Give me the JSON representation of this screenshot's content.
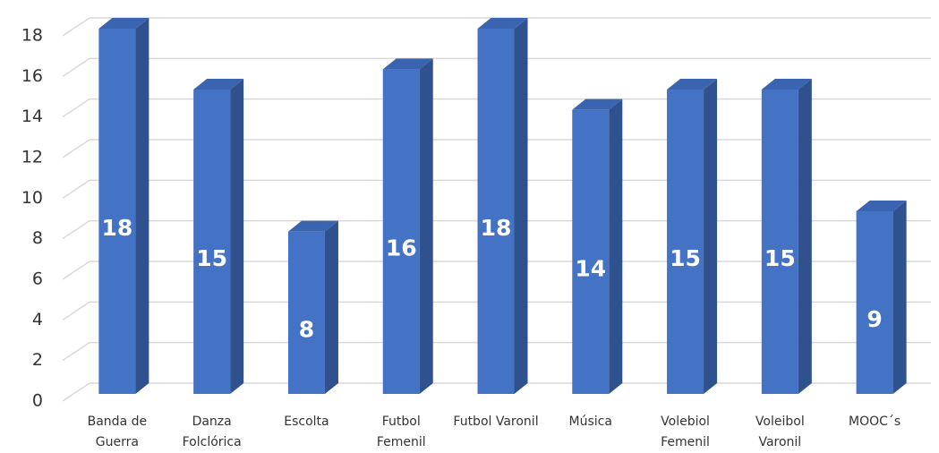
{
  "chart_data": {
    "type": "bar3d",
    "categories": [
      "Banda de Guerra",
      "Danza Folclórica",
      "Escolta",
      "Futbol Femenil",
      "Futbol Varonil",
      "Música",
      "Volebiol Femenil",
      "Voleibol Varonil",
      "MOOC´s"
    ],
    "values": [
      18,
      15,
      8,
      16,
      18,
      14,
      15,
      15,
      9
    ],
    "color": "#4472c4",
    "ylim": [
      0,
      18
    ],
    "yticks": [
      0,
      2,
      4,
      6,
      8,
      10,
      12,
      14,
      16,
      18
    ],
    "grid": true
  }
}
